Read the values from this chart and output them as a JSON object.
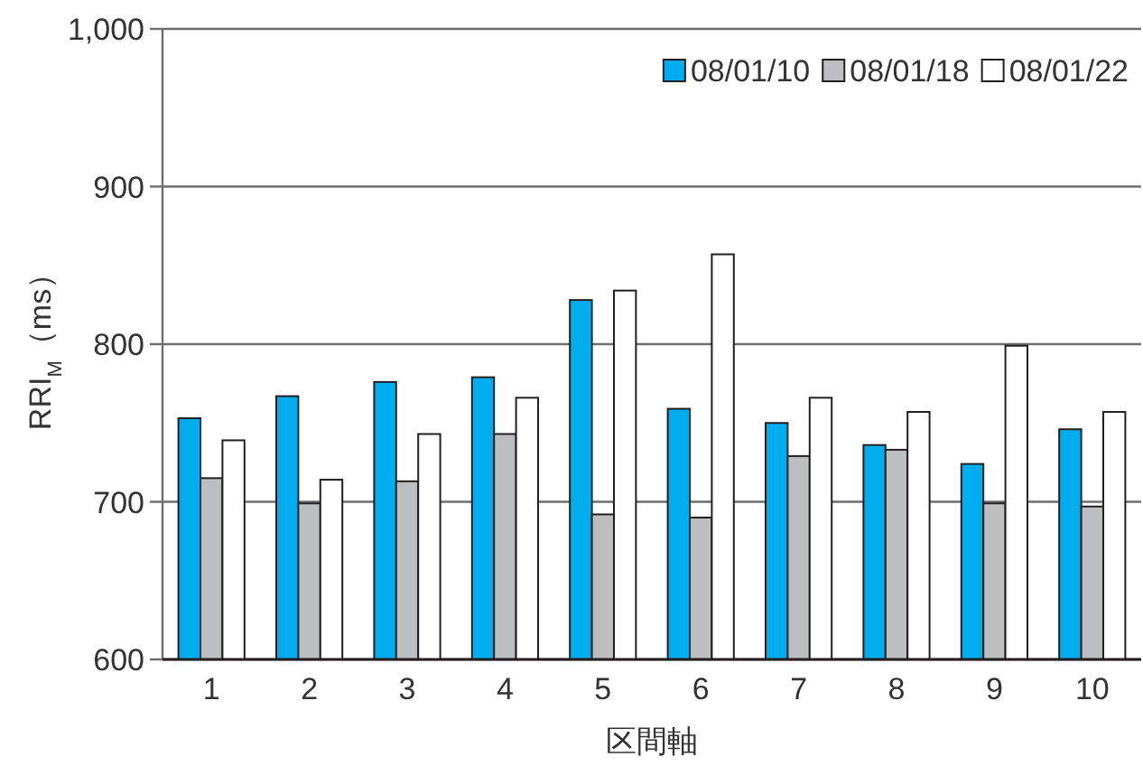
{
  "chart_data": {
    "type": "bar",
    "xlabel": "区間軸",
    "ylabel": "RRI$_{M}$（ms）",
    "categories": [
      "1",
      "2",
      "3",
      "4",
      "5",
      "6",
      "7",
      "8",
      "9",
      "10"
    ],
    "series": [
      {
        "name": "08/01/10",
        "color": "#00aeef",
        "values": [
          753,
          767,
          776,
          779,
          828,
          759,
          750,
          736,
          724,
          746
        ]
      },
      {
        "name": "08/01/18",
        "color": "#bcbec0",
        "values": [
          715,
          699,
          713,
          743,
          692,
          690,
          729,
          733,
          699,
          697
        ]
      },
      {
        "name": "08/01/22",
        "color": "#ffffff",
        "values": [
          739,
          714,
          743,
          766,
          834,
          857,
          766,
          757,
          799,
          757
        ]
      }
    ],
    "ylim": [
      600,
      1000
    ],
    "yticks": [
      600,
      700,
      800,
      900,
      {
        "value": 1000,
        "label": "1,000"
      }
    ],
    "grid": "y",
    "legend": "top right"
  }
}
